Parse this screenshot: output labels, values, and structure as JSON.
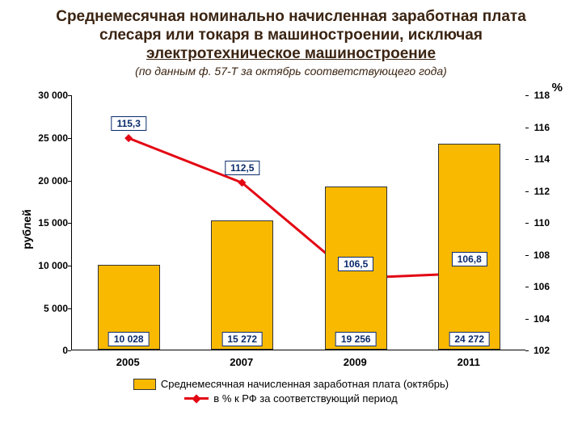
{
  "title": {
    "line1": "Среднемесячная номинально начисленная заработная плата",
    "line2": "слесаря или токаря в машиностроении, исключая",
    "line3": "электротехническое машиностроение",
    "color": "#3b2412",
    "fontsize": 19
  },
  "subtitle": {
    "text": "(по данным ф. 57-Т за октябрь соответствующего года)",
    "color": "#3b2412",
    "fontsize": 14
  },
  "chart": {
    "type": "bar+line",
    "categories": [
      "2005",
      "2007",
      "2009",
      "2011"
    ],
    "bars": {
      "values": [
        10028,
        15272,
        19256,
        24272
      ],
      "labels": [
        "10 028",
        "15 272",
        "19 256",
        "24 272"
      ],
      "color": "#f9b900",
      "border_color": "#333333",
      "bar_width_frac": 0.55,
      "label_bg": "#ffffff",
      "label_border": "#0a2a6b",
      "label_color": "#0a2a6b"
    },
    "line": {
      "values": [
        115.3,
        112.5,
        106.5,
        106.8
      ],
      "labels": [
        "115,3",
        "112,5",
        "106,5",
        "106,8"
      ],
      "color": "#e30613",
      "width": 3,
      "marker": "diamond",
      "marker_size": 10,
      "label_bg": "#ffffff",
      "label_border": "#0a2a6b",
      "label_color": "#0a2a6b"
    },
    "y_left": {
      "label": "рублей",
      "min": 0,
      "max": 30000,
      "tick_step": 5000,
      "tick_labels": [
        "0",
        "5 000",
        "10 000",
        "15 000",
        "20 000",
        "25 000",
        "30 000"
      ],
      "fontsize": 12
    },
    "y_right": {
      "label": "%",
      "min": 102,
      "max": 118,
      "tick_step": 2,
      "tick_labels": [
        "102",
        "104",
        "106",
        "108",
        "110",
        "112",
        "114",
        "116",
        "118"
      ],
      "fontsize": 12
    },
    "background_color": "#ffffff",
    "axis_color": "#000000"
  },
  "legend": {
    "bar_label": "Среднемесячная начисленная заработная плата (октябрь)",
    "line_label": "в % к РФ за соответствующий период",
    "bar_color": "#f9b900",
    "line_color": "#e30613"
  }
}
